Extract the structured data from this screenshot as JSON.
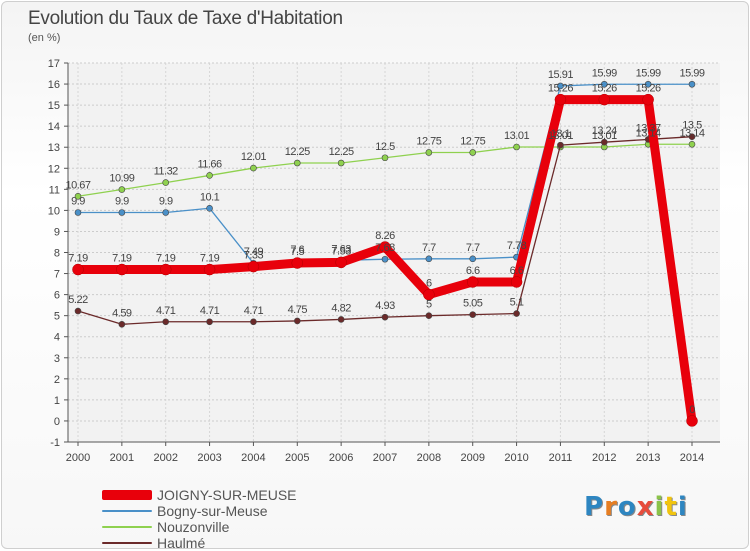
{
  "header": {
    "title": "Evolution du Taux de Taxe d'Habitation",
    "subtitle": "(en %)"
  },
  "logo": {
    "letters": [
      "P",
      "r",
      "o",
      "x",
      "i",
      "t",
      "i"
    ],
    "colors": [
      "#2e86c1",
      "#e67e22",
      "#2e86c1",
      "#e74c3c",
      "#8bc34a",
      "#f1c40f",
      "#2e86c1"
    ]
  },
  "chart_data": {
    "type": "line",
    "x": [
      2000,
      2001,
      2002,
      2003,
      2004,
      2005,
      2006,
      2007,
      2008,
      2009,
      2010,
      2011,
      2012,
      2013,
      2014
    ],
    "ylim": [
      -1,
      17
    ],
    "yticks": [
      -1,
      0,
      1,
      2,
      3,
      4,
      5,
      6,
      7,
      8,
      9,
      10,
      11,
      12,
      13,
      14,
      15,
      16,
      17
    ],
    "grid": true,
    "legend": "bottom-left",
    "series": [
      {
        "name": "JOIGNY-SUR-MEUSE",
        "color": "#e8000b",
        "values": [
          7.19,
          7.19,
          7.19,
          7.19,
          7.33,
          7.5,
          7.53,
          8.26,
          6,
          6.6,
          6.6,
          15.26,
          15.26,
          15.26,
          0
        ],
        "labels": [
          "7.19",
          "7.19",
          "7.19",
          "7.19",
          "7.33",
          "7.5",
          "7.53",
          "8.26",
          "6",
          "6.6",
          "6.6",
          "15.26",
          "15.26",
          "15.26",
          "0"
        ]
      },
      {
        "name": "Bogny-sur-Meuse",
        "color": "#4a90c8",
        "values": [
          9.9,
          9.9,
          9.9,
          10.1,
          7.49,
          7.6,
          7.63,
          7.68,
          7.7,
          7.7,
          7.78,
          15.91,
          15.99,
          15.99,
          15.99
        ],
        "labels": [
          "9.9",
          "9.9",
          "9.9",
          "10.1",
          "7.49",
          "7.6",
          "7.63",
          "7.68",
          "7.7",
          "7.7",
          "7.78",
          "15.91",
          "15.99",
          "15.99",
          "15.99"
        ]
      },
      {
        "name": "Nouzonville",
        "color": "#8fd14f",
        "values": [
          10.67,
          10.99,
          11.32,
          11.66,
          12.01,
          12.25,
          12.25,
          12.5,
          12.75,
          12.75,
          13.01,
          13.01,
          13.01,
          13.14,
          13.14
        ],
        "labels": [
          "10.67",
          "10.99",
          "11.32",
          "11.66",
          "12.01",
          "12.25",
          "12.25",
          "12.5",
          "12.75",
          "12.75",
          "13.01",
          "13.01",
          "13.01",
          "13.14",
          "13.14"
        ]
      },
      {
        "name": "Haulmé",
        "color": "#6b2a2a",
        "values": [
          5.22,
          4.59,
          4.71,
          4.71,
          4.71,
          4.75,
          4.82,
          4.93,
          5,
          5.05,
          5.1,
          13.1,
          13.24,
          13.37,
          13.5
        ],
        "labels": [
          "5.22",
          "4.59",
          "4.71",
          "4.71",
          "4.71",
          "4.75",
          "4.82",
          "4.93",
          "5",
          "5.05",
          "5.1",
          "13.1",
          "13.24",
          "13.37",
          "13.5"
        ]
      }
    ]
  }
}
